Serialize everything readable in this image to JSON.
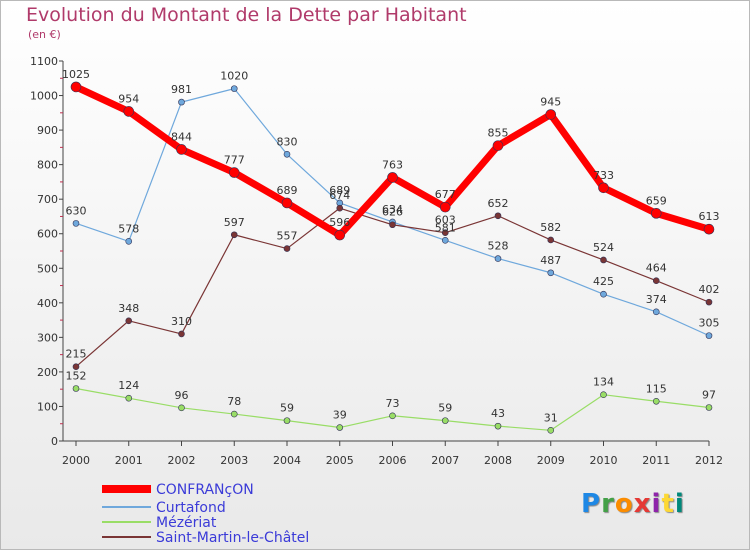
{
  "title": "Evolution du Montant de la Dette par Habitant",
  "unit": "(en €)",
  "brand": "Proxiti",
  "colors": {
    "title": "#b03a6a",
    "legend_text": "#3b3bd8",
    "CONFRANçON": "#ff0000",
    "Curtafond": "#6fa8dc",
    "Mézériat": "#99dd66",
    "Saint-Martin-le-Châtel": "#7a3535"
  },
  "chart_data": {
    "type": "line",
    "title": "Evolution du Montant de la Dette par Habitant",
    "ylabel": "(en €)",
    "xlabel": "",
    "ylim": [
      0,
      1100
    ],
    "yticks": [
      0,
      100,
      200,
      300,
      400,
      500,
      600,
      700,
      800,
      900,
      1000,
      1100
    ],
    "grid": false,
    "legend_position": "bottom",
    "categories": [
      "2000",
      "2001",
      "2002",
      "2003",
      "2004",
      "2005",
      "2006",
      "2007",
      "2008",
      "2009",
      "2010",
      "2011",
      "2012"
    ],
    "series": [
      {
        "name": "CONFRANçON",
        "values": [
          1025,
          954,
          844,
          777,
          689,
          596,
          763,
          677,
          855,
          945,
          733,
          659,
          613
        ]
      },
      {
        "name": "Curtafond",
        "values": [
          630,
          578,
          981,
          1020,
          830,
          689,
          634,
          581,
          528,
          487,
          425,
          374,
          305
        ]
      },
      {
        "name": "Mézériat",
        "values": [
          152,
          124,
          96,
          78,
          59,
          39,
          73,
          59,
          43,
          31,
          134,
          115,
          97
        ]
      },
      {
        "name": "Saint-Martin-le-Châtel",
        "values": [
          215,
          348,
          310,
          597,
          557,
          674,
          626,
          603,
          652,
          582,
          524,
          464,
          402
        ]
      }
    ]
  }
}
